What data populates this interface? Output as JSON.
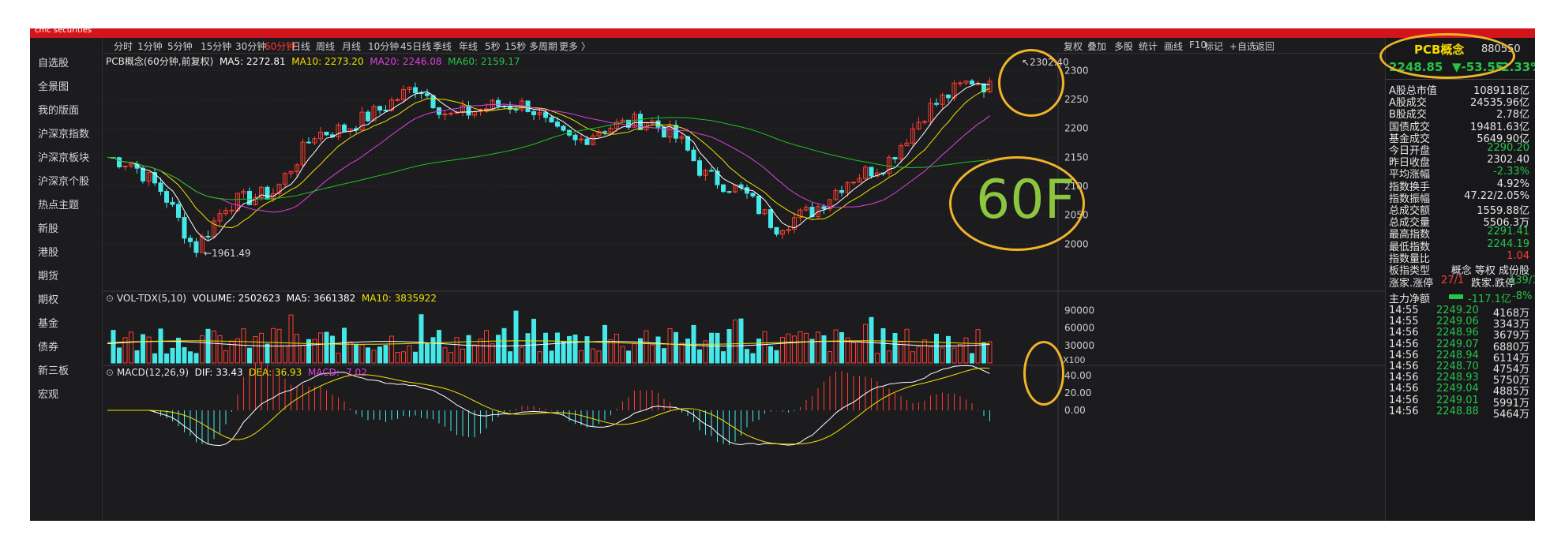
{
  "brand": "cmc securities",
  "sidebar": {
    "items": [
      "自选股",
      "全景图",
      "我的版面",
      "沪深京指数",
      "沪深京板块",
      "沪深京个股",
      "热点主题",
      "新股",
      "港股",
      "期货",
      "期权",
      "基金",
      "债券",
      "新三板",
      "宏观"
    ]
  },
  "periods": [
    "分时",
    "1分钟",
    "5分钟",
    "15分钟",
    "30分钟",
    "60分钟",
    "日线",
    "周线",
    "月线",
    "10分钟",
    "45日线",
    "季线",
    "年线",
    "5秒",
    "15秒",
    "多周期",
    "更多 〉"
  ],
  "active_period": "60分钟",
  "tools": [
    "复权",
    "叠加",
    "多股",
    "统计",
    "画线",
    "F10",
    "标记",
    "+自选",
    "返回"
  ],
  "main_legend": {
    "name": "PCB概念(60分钟,前复权)",
    "ma5": "MA5: 2272.81",
    "ma10": "MA10: 2273.20",
    "ma20": "MA20: 2246.08",
    "ma60": "MA60: 2159.17"
  },
  "vol_legend": {
    "name": "VOL-TDX(5,10)",
    "volume": "VOLUME: 2502623",
    "ma5": "MA5: 3661382",
    "ma10": "MA10: 3835922"
  },
  "macd_legend": {
    "name": "MACD(12,26,9)",
    "dif": "DIF: 33.43",
    "dea": "DEA: 36.93",
    "macd": "MACD: -7.02"
  },
  "high_label": "2302.40",
  "low_label": "1961.49",
  "price_axis": [
    "2300",
    "2250",
    "2200",
    "2150",
    "2100",
    "2050",
    "2000"
  ],
  "vol_axis": [
    "90000",
    "60000",
    "30000",
    "X100"
  ],
  "macd_axis": [
    "40.00",
    "20.00",
    "0.00"
  ],
  "annotation_text": "60F",
  "quote": {
    "title": "PCB概念",
    "code": "880550",
    "price": "2248.85",
    "change": "▼-53.55",
    "pct": "-2.33%"
  },
  "stats": [
    {
      "k": "A股总市值",
      "v": "1089118亿",
      "c": ""
    },
    {
      "k": "A股成交",
      "v": "24535.96亿",
      "c": ""
    },
    {
      "k": "B股成交",
      "v": "2.78亿",
      "c": ""
    },
    {
      "k": "国债成交",
      "v": "19481.63亿",
      "c": ""
    },
    {
      "k": "基金成交",
      "v": "5649.90亿",
      "c": ""
    },
    {
      "k": "今日开盘",
      "v": "2290.20",
      "c": "green"
    },
    {
      "k": "昨日收盘",
      "v": "2302.40",
      "c": ""
    },
    {
      "k": "平均涨幅",
      "v": "-2.33%",
      "c": "green"
    },
    {
      "k": "指数换手",
      "v": "4.92%",
      "c": ""
    },
    {
      "k": "指数振幅",
      "v": "47.22/2.05%",
      "c": ""
    },
    {
      "k": "总成交额",
      "v": "1559.88亿",
      "c": ""
    },
    {
      "k": "总成交量",
      "v": "5506.3万",
      "c": ""
    },
    {
      "k": "最高指数",
      "v": "2291.41",
      "c": "green"
    },
    {
      "k": "最低指数",
      "v": "2244.19",
      "c": "green"
    },
    {
      "k": "指数量比",
      "v": "1.04",
      "c": "red"
    },
    {
      "k": "板指类型",
      "v": "概念 等权 成份股",
      "c": ""
    }
  ],
  "updown": {
    "k1": "涨家.涨停",
    "v1": "27/1",
    "k2": "跌家.跌停",
    "v2": "139/1"
  },
  "mainflow": {
    "k": "主力净额",
    "v1": "-117.1亿",
    "v2": "-8%"
  },
  "ticks": [
    {
      "t": "14:55",
      "p": "2249.20",
      "v": "4168万"
    },
    {
      "t": "14:55",
      "p": "2249.06",
      "v": "3343万"
    },
    {
      "t": "14:56",
      "p": "2248.96",
      "v": "3679万"
    },
    {
      "t": "14:56",
      "p": "2249.07",
      "v": "6880万"
    },
    {
      "t": "14:56",
      "p": "2248.94",
      "v": "6114万"
    },
    {
      "t": "14:56",
      "p": "2248.70",
      "v": "4754万"
    },
    {
      "t": "14:56",
      "p": "2248.93",
      "v": "5750万"
    },
    {
      "t": "14:56",
      "p": "2249.04",
      "v": "4885万"
    },
    {
      "t": "14:56",
      "p": "2249.01",
      "v": "5991万"
    },
    {
      "t": "14:56",
      "p": "2248.88",
      "v": "5464万"
    }
  ],
  "colors": {
    "up": "#ff3b30",
    "down": "#45e8e8",
    "ma5": "#ffffff",
    "ma10": "#f0e000",
    "ma20": "#e040e0",
    "ma60": "#20c020",
    "accent": "#d4141c",
    "circle": "#f0b429"
  }
}
